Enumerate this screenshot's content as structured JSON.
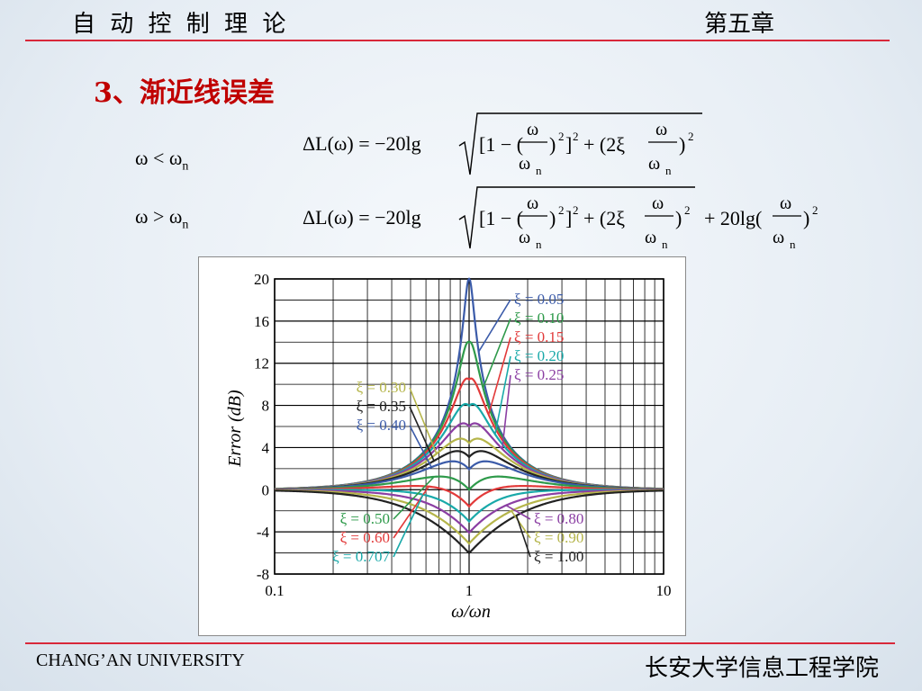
{
  "header": {
    "course_title": "自 动 控 制 理 论",
    "chapter": "第五章"
  },
  "section_title": "3、渐近线误差",
  "conditions": [
    {
      "lhs": "ω",
      "op": "<",
      "rhs": "ω",
      "sub": "n"
    },
    {
      "lhs": "ω",
      "op": ">",
      "rhs": "ω",
      "sub": "n"
    }
  ],
  "formula1": {
    "lhs": "ΔL(ω) = −20lg",
    "open": "[1 − (",
    "close1": ")",
    "sq1": "2",
    "br": "]",
    "sq2": "2",
    "plus": "+ (2ξ",
    "close2": ")",
    "sq3": "2",
    "num": "ω",
    "den": "ω",
    "den_sub": "n"
  },
  "formula2": {
    "lhs": "ΔL(ω) = −20lg",
    "open": "[1 − (",
    "close1": ")",
    "sq1": "2",
    "br": "]",
    "sq2": "2",
    "plus": "+ (2ξ",
    "close2": ")",
    "sq3": "2",
    "tail": "+ 20lg(",
    "close3": ")",
    "sq4": "2",
    "num": "ω",
    "den": "ω",
    "den_sub": "n"
  },
  "chart_data": {
    "type": "line",
    "x_scale": "log",
    "xlim": [
      0.1,
      10
    ],
    "ylim": [
      -8,
      20
    ],
    "x_ticks": [
      "0.1",
      "1",
      "10"
    ],
    "y_ticks": [
      "20",
      "16",
      "12",
      "8",
      "4",
      "0",
      "-4",
      "-8"
    ],
    "xlabel": "ω/ωn",
    "ylabel": "Error  (dB)",
    "grid": true,
    "series": [
      {
        "name": "ξ = 0.05",
        "zeta": 0.05,
        "color": "#3b5ba9"
      },
      {
        "name": "ξ = 0.10",
        "zeta": 0.1,
        "color": "#2e9a4a"
      },
      {
        "name": "ξ = 0.15",
        "zeta": 0.15,
        "color": "#e23a3a"
      },
      {
        "name": "ξ = 0.20",
        "zeta": 0.2,
        "color": "#19a9a9"
      },
      {
        "name": "ξ = 0.25",
        "zeta": 0.25,
        "color": "#8b3fa3"
      },
      {
        "name": "ξ = 0.30",
        "zeta": 0.3,
        "color": "#b5b54a"
      },
      {
        "name": "ξ = 0.35",
        "zeta": 0.35,
        "color": "#222222"
      },
      {
        "name": "ξ = 0.40",
        "zeta": 0.4,
        "color": "#3b5ba9"
      },
      {
        "name": "ξ = 0.50",
        "zeta": 0.5,
        "color": "#2e9a4a"
      },
      {
        "name": "ξ = 0.60",
        "zeta": 0.6,
        "color": "#e23a3a"
      },
      {
        "name": "ξ = 0.707",
        "zeta": 0.707,
        "color": "#19a9a9"
      },
      {
        "name": "ξ = 0.80",
        "zeta": 0.8,
        "color": "#8b3fa3"
      },
      {
        "name": "ξ = 0.90",
        "zeta": 0.9,
        "color": "#b5b54a"
      },
      {
        "name": "ξ = 1.00",
        "zeta": 1.0,
        "color": "#222222"
      }
    ]
  },
  "footer": {
    "left": "CHANG’AN UNIVERSITY",
    "right": "长安大学信息工程学院"
  }
}
